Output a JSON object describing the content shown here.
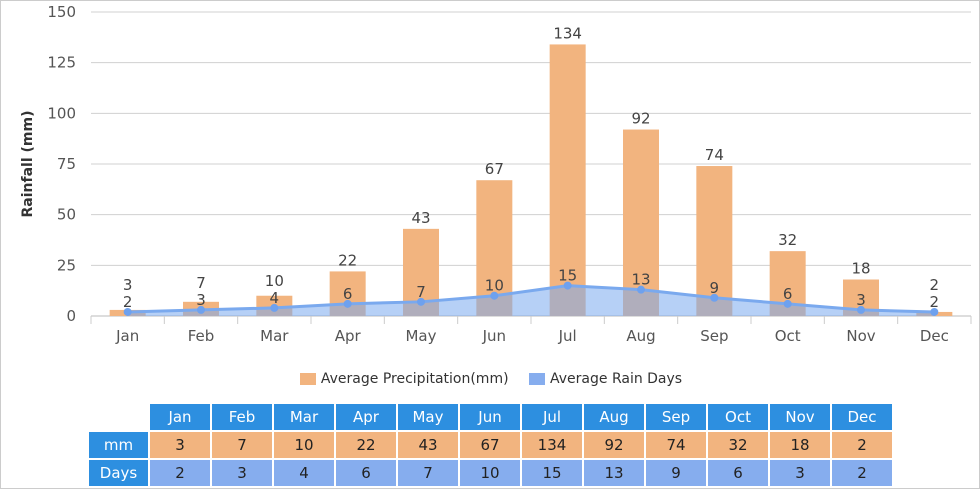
{
  "chart_data": {
    "type": "bar",
    "categories": [
      "Jan",
      "Feb",
      "Mar",
      "Apr",
      "May",
      "Jun",
      "Jul",
      "Aug",
      "Sep",
      "Oct",
      "Nov",
      "Dec"
    ],
    "ylabel": "Rainfall (mm)",
    "ylim": [
      0,
      150
    ],
    "yticks": [
      0,
      25,
      50,
      75,
      100,
      125,
      150
    ],
    "grid": true,
    "legend_position": "bottom",
    "series": [
      {
        "name": "Average Precipitation(mm)",
        "type": "bar",
        "color": "#f2b47f",
        "values": [
          3,
          7,
          10,
          22,
          43,
          67,
          134,
          92,
          74,
          32,
          18,
          2
        ]
      },
      {
        "name": "Average Rain Days",
        "type": "area",
        "color": "#7aa9ee",
        "values": [
          2,
          3,
          4,
          6,
          7,
          10,
          15,
          13,
          9,
          6,
          3,
          2
        ]
      }
    ]
  },
  "table": {
    "row_labels": [
      "mm",
      "Days"
    ]
  }
}
